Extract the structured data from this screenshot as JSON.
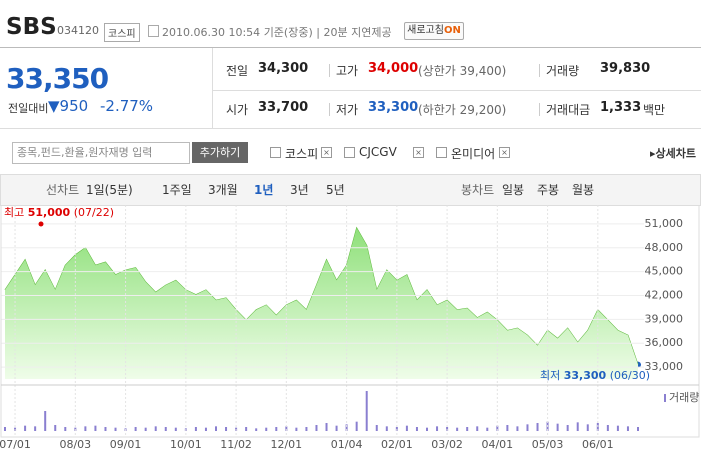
{
  "header": {
    "name": "SBS",
    "code": "034120",
    "market": "코스피",
    "datetime": "2010.06.30  10:54",
    "basis": "기준(장중)",
    "delay": "20분 지연제공",
    "refresh": "새로고침",
    "refresh_state": "ON"
  },
  "quote": {
    "price": "33,350",
    "change_label": "전일대비",
    "change": "▼950",
    "change_pct": "-2.77%",
    "stats": [
      {
        "label": "전일",
        "value": "34,300"
      },
      {
        "label": "고가",
        "value": "34,000",
        "note": "(상한가 39,400)"
      },
      {
        "label": "거래량",
        "value": "39,830"
      },
      {
        "label": "시가",
        "value": "33,700"
      },
      {
        "label": "저가",
        "value": "33,300",
        "note": "(하한가 29,200)"
      },
      {
        "label": "거래대금",
        "value": "1,333",
        "unit": "백만"
      }
    ]
  },
  "search": {
    "placeholder": "종목,펀드,환율,원자재명 입력",
    "button": "추가하기",
    "compare": [
      "코스피",
      "CJCGV",
      "온미디어"
    ],
    "detail_link": "상세차트"
  },
  "tabs": {
    "line_label": "선차트",
    "line_periods": [
      "1일(5분)",
      "1주일",
      "3개월",
      "1년",
      "3년",
      "5년"
    ],
    "active_index": 3,
    "candle_label": "봉차트",
    "candle_periods": [
      "일봉",
      "주봉",
      "월봉"
    ]
  },
  "chart_data": {
    "type": "area",
    "color": "#5cb83a",
    "volume_color": "#8a7fd0",
    "high_label": "최고",
    "high_value": "51,000",
    "high_date": "(07/22)",
    "low_label": "최저",
    "low_value": "33,300",
    "low_date": "(06/30)",
    "volume_label": "거래량",
    "values": [
      42700,
      44600,
      46500,
      43300,
      45200,
      42700,
      45800,
      47100,
      48000,
      45800,
      46200,
      44600,
      45200,
      45500,
      43700,
      42400,
      43300,
      43900,
      42700,
      42100,
      42700,
      41400,
      41700,
      40200,
      38900,
      40200,
      40800,
      39500,
      40800,
      41400,
      40200,
      43300,
      46500,
      43900,
      45800,
      50500,
      48300,
      42700,
      45200,
      43900,
      44600,
      41400,
      42700,
      40800,
      41400,
      40200,
      40400,
      39200,
      39900,
      38900,
      37600,
      37900,
      37000,
      35700,
      37600,
      36600,
      37900,
      36100,
      37600,
      40200,
      38900,
      37600,
      37000,
      33300
    ],
    "volume": [
      6,
      5,
      8,
      7,
      30,
      9,
      6,
      5,
      7,
      8,
      6,
      5,
      4,
      6,
      5,
      7,
      6,
      5,
      4,
      6,
      5,
      7,
      6,
      5,
      6,
      4,
      5,
      6,
      7,
      5,
      6,
      9,
      12,
      8,
      10,
      14,
      60,
      9,
      7,
      6,
      8,
      6,
      5,
      7,
      6,
      5,
      6,
      7,
      5,
      8,
      9,
      7,
      10,
      12,
      14,
      11,
      9,
      13,
      10,
      12,
      9,
      8,
      7,
      6
    ],
    "ylim": [
      31500,
      52500
    ],
    "yticks": [
      {
        "value": 33000,
        "label": "33,000"
      },
      {
        "value": 36000,
        "label": "36,000"
      },
      {
        "value": 39000,
        "label": "39,000"
      },
      {
        "value": 42000,
        "label": "42,000"
      },
      {
        "value": 45000,
        "label": "45,000"
      },
      {
        "value": 48000,
        "label": "48,000"
      },
      {
        "value": 51000,
        "label": "51,000"
      }
    ],
    "xlim": [
      0,
      63
    ],
    "xticks": [
      {
        "value": 1,
        "label": "07/01"
      },
      {
        "value": 7,
        "label": "08/03"
      },
      {
        "value": 12,
        "label": "09/01"
      },
      {
        "value": 18,
        "label": "10/01"
      },
      {
        "value": 23,
        "label": "11/02"
      },
      {
        "value": 28,
        "label": "12/01"
      },
      {
        "value": 34,
        "label": "01/04"
      },
      {
        "value": 39,
        "label": "02/01"
      },
      {
        "value": 44,
        "label": "03/02"
      },
      {
        "value": 49,
        "label": "04/01"
      },
      {
        "value": 54,
        "label": "05/03"
      },
      {
        "value": 59,
        "label": "06/01"
      }
    ],
    "grid": true
  }
}
